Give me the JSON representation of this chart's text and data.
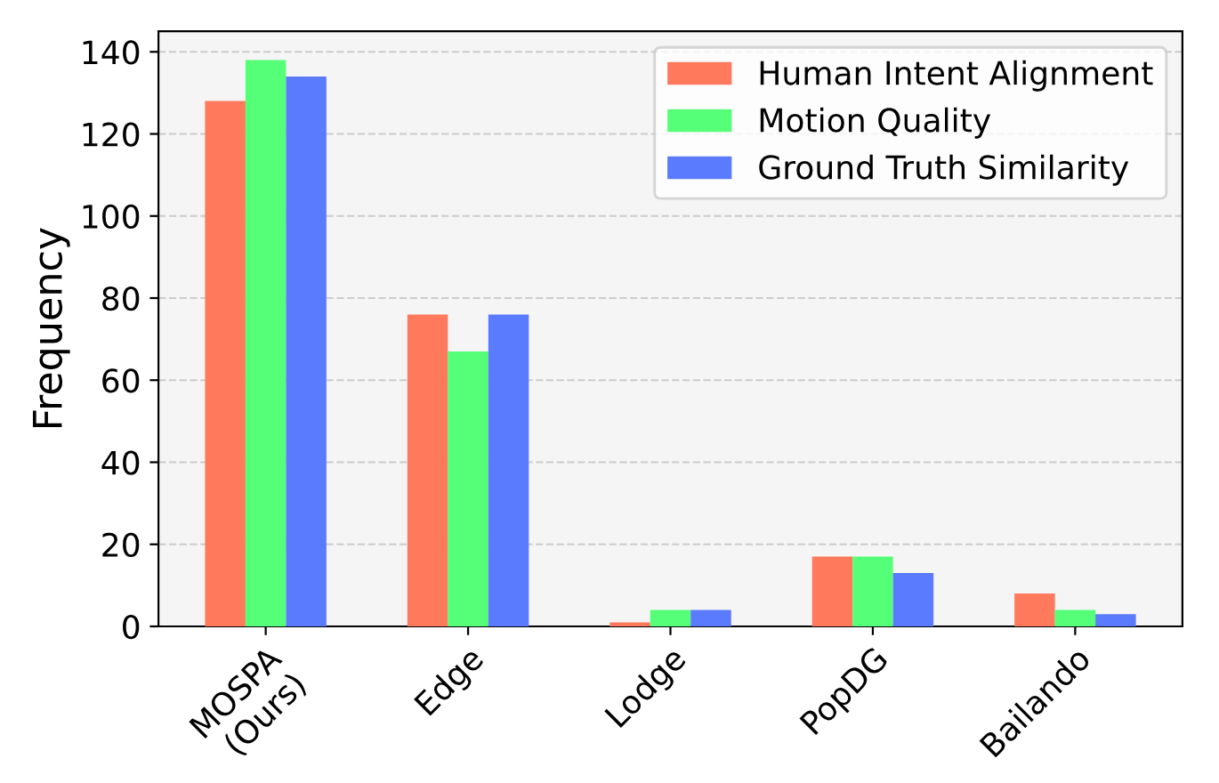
{
  "chart_data": {
    "type": "bar",
    "ylabel": "Frequency",
    "categories": [
      "MOSPA\n(Ours)",
      "Edge",
      "Lodge",
      "PopDG",
      "Bailando"
    ],
    "series": [
      {
        "name": "Human Intent Alignment",
        "color": "#ff7a5c",
        "values": [
          128,
          76,
          1,
          17,
          8
        ]
      },
      {
        "name": "Motion Quality",
        "color": "#55ff77",
        "values": [
          138,
          67,
          4,
          17,
          4
        ]
      },
      {
        "name": "Ground Truth Similarity",
        "color": "#5b7bff",
        "values": [
          134,
          76,
          4,
          13,
          3
        ]
      }
    ],
    "ylim": [
      0,
      145
    ],
    "yticks": [
      0,
      20,
      40,
      60,
      80,
      100,
      120,
      140
    ],
    "grid": "y",
    "legend": "top right"
  }
}
